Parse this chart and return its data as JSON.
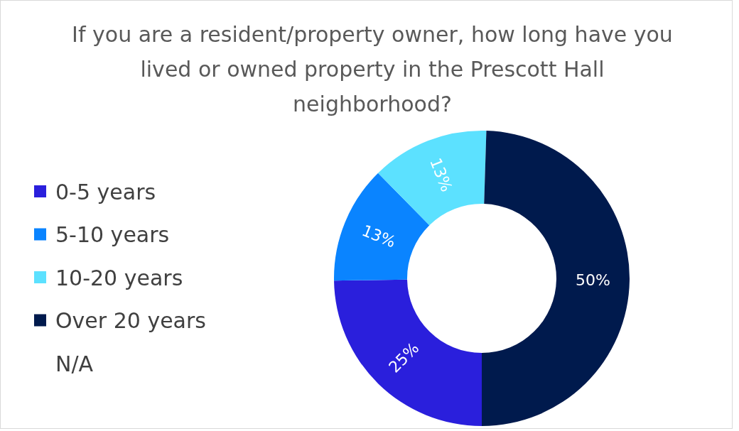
{
  "chart_data": {
    "type": "donut",
    "title": "If you are a resident/property owner, how long have you lived or owned property in the Prescott Hall neighborhood?",
    "categories": [
      "0-5 years",
      "5-10 years",
      "10-20 years",
      "Over 20 years",
      "N/A"
    ],
    "values": [
      25,
      13,
      13,
      50,
      0
    ],
    "colors": [
      "#2a1fdc",
      "#0a84ff",
      "#5ce1ff",
      "#001a4d",
      null
    ],
    "value_labels": [
      "25%",
      "13%",
      "13%",
      "50%",
      null
    ],
    "legend": "left"
  }
}
